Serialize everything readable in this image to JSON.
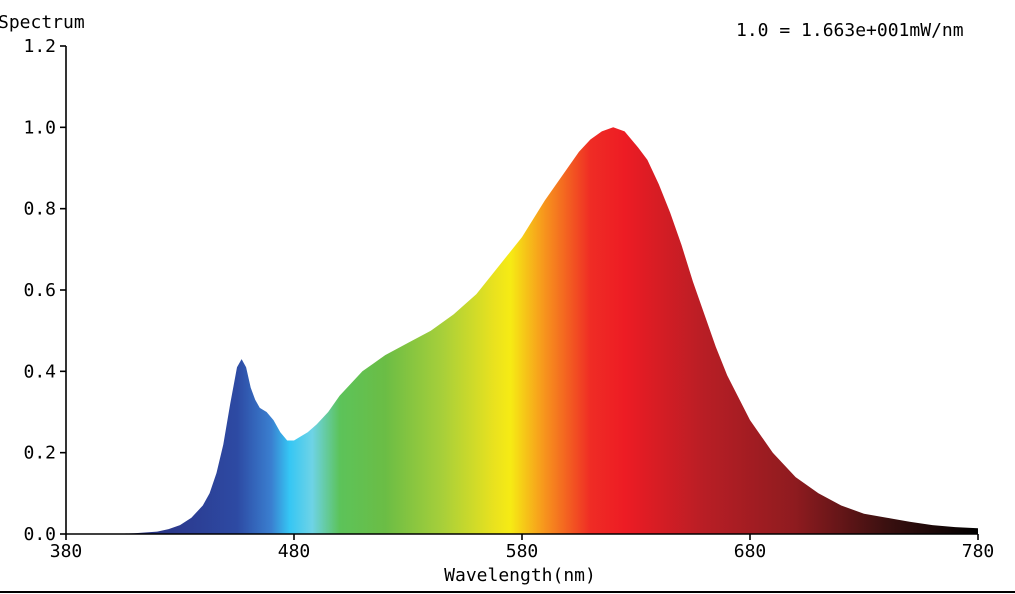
{
  "chart_data": {
    "type": "area",
    "title": "Spectrum",
    "xlabel": "Wavelength(nm)",
    "ylabel": "",
    "scale_note": "1.0 = 1.663e+001mW/nm",
    "xlim": [
      380,
      780
    ],
    "ylim": [
      0,
      1.2
    ],
    "x_ticks": [
      "380",
      "480",
      "580",
      "680",
      "780"
    ],
    "y_ticks": [
      "0.0",
      "0.2",
      "0.4",
      "0.6",
      "0.8",
      "1.0",
      "1.2"
    ],
    "grid": false,
    "legend": "none",
    "series": [
      {
        "x": [
          380,
          400,
          410,
          420,
          425,
          430,
          435,
          440,
          443,
          446,
          449,
          452,
          455,
          457,
          459,
          461,
          463,
          465,
          468,
          471,
          474,
          477,
          480,
          483,
          486,
          490,
          495,
          500,
          505,
          510,
          515,
          520,
          530,
          540,
          550,
          560,
          570,
          580,
          590,
          600,
          605,
          610,
          615,
          620,
          625,
          628,
          631,
          635,
          640,
          645,
          650,
          655,
          660,
          665,
          670,
          680,
          690,
          700,
          710,
          720,
          730,
          740,
          750,
          760,
          770,
          780
        ],
        "y": [
          0.0,
          0.0,
          0.002,
          0.006,
          0.012,
          0.022,
          0.04,
          0.07,
          0.1,
          0.15,
          0.22,
          0.32,
          0.41,
          0.43,
          0.41,
          0.36,
          0.33,
          0.31,
          0.3,
          0.28,
          0.25,
          0.23,
          0.23,
          0.24,
          0.25,
          0.27,
          0.3,
          0.34,
          0.37,
          0.4,
          0.42,
          0.44,
          0.47,
          0.5,
          0.54,
          0.59,
          0.66,
          0.73,
          0.82,
          0.9,
          0.94,
          0.97,
          0.99,
          1.0,
          0.99,
          0.97,
          0.95,
          0.92,
          0.86,
          0.79,
          0.71,
          0.62,
          0.54,
          0.46,
          0.39,
          0.28,
          0.2,
          0.14,
          0.1,
          0.07,
          0.05,
          0.04,
          0.03,
          0.022,
          0.017,
          0.014
        ]
      }
    ]
  },
  "colors": {
    "background": "#ffffff",
    "axis": "#000000",
    "spectrum_stops": [
      {
        "nm": 380,
        "color": "#1d1f5c"
      },
      {
        "nm": 430,
        "color": "#2c3b90"
      },
      {
        "nm": 455,
        "color": "#2d4aa3"
      },
      {
        "nm": 470,
        "color": "#3a7fd0"
      },
      {
        "nm": 478,
        "color": "#35c6f4"
      },
      {
        "nm": 488,
        "color": "#6ed3e6"
      },
      {
        "nm": 500,
        "color": "#5cc35a"
      },
      {
        "nm": 520,
        "color": "#6bbd45"
      },
      {
        "nm": 545,
        "color": "#a7cf3a"
      },
      {
        "nm": 568,
        "color": "#eae21e"
      },
      {
        "nm": 575,
        "color": "#f6eb14"
      },
      {
        "nm": 590,
        "color": "#f7941d"
      },
      {
        "nm": 610,
        "color": "#ef2c25"
      },
      {
        "nm": 625,
        "color": "#ed1c24"
      },
      {
        "nm": 660,
        "color": "#b81e25"
      },
      {
        "nm": 700,
        "color": "#8e1b1f"
      },
      {
        "nm": 740,
        "color": "#3a1010"
      },
      {
        "nm": 780,
        "color": "#000000"
      }
    ]
  }
}
